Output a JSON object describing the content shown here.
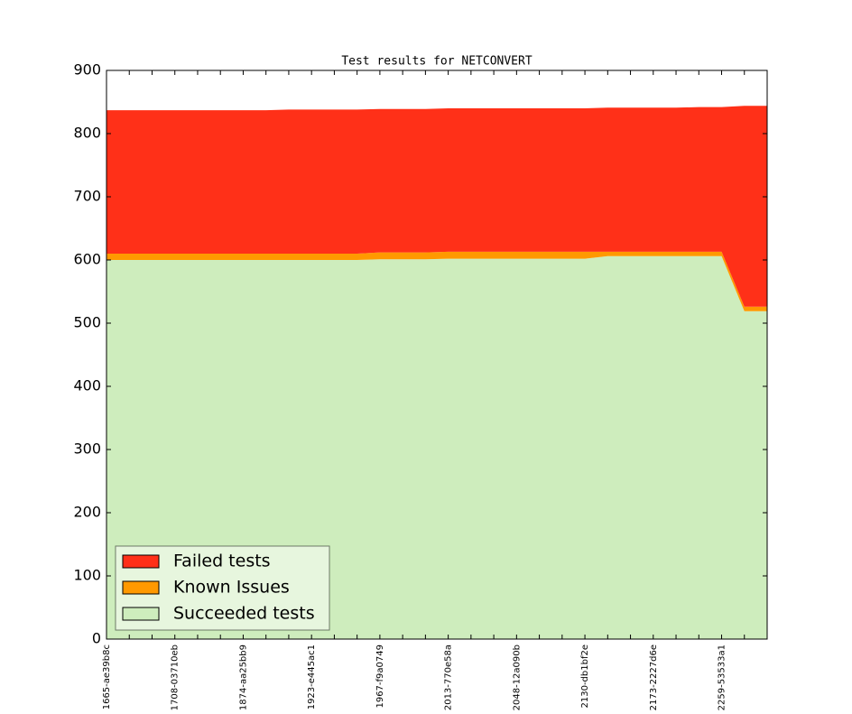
{
  "chart_data": {
    "type": "stacked-area",
    "title": "Test results for NETCONVERT",
    "categories": [
      "1665-ae39b8c",
      null,
      null,
      "1708-03710eb",
      null,
      null,
      "1874-aa25bb9",
      null,
      null,
      "1923-e445ac1",
      null,
      null,
      "1967-f9a0749",
      null,
      null,
      "2013-770e58a",
      null,
      null,
      "2048-12a090b",
      null,
      null,
      "2130-db1bf2e",
      null,
      null,
      "2173-2227d6e",
      null,
      null,
      "2259-53533a1",
      null,
      null
    ],
    "series": [
      {
        "name": "Succeeded tests",
        "color": "#ceedbd",
        "values": [
          600,
          600,
          600,
          600,
          600,
          600,
          600,
          600,
          600,
          600,
          600,
          600,
          601,
          601,
          601,
          602,
          602,
          602,
          602,
          602,
          602,
          602,
          606,
          606,
          606,
          606,
          606,
          606,
          519,
          519
        ]
      },
      {
        "name": "Known Issues",
        "color": "#ff9900",
        "values": [
          10,
          10,
          10,
          10,
          10,
          10,
          10,
          10,
          10,
          10,
          10,
          10,
          11,
          11,
          11,
          11,
          11,
          11,
          11,
          11,
          11,
          11,
          7,
          7,
          7,
          7,
          7,
          7,
          7,
          7
        ]
      },
      {
        "name": "Failed tests",
        "color": "#ff3018",
        "values": [
          227,
          227,
          227,
          227,
          227,
          227,
          227,
          227,
          228,
          228,
          228,
          228,
          227,
          227,
          227,
          227,
          227,
          227,
          227,
          227,
          227,
          227,
          228,
          228,
          228,
          228,
          229,
          229,
          318,
          318
        ]
      }
    ],
    "ylim": [
      0,
      900
    ],
    "yticks": [
      0,
      100,
      200,
      300,
      400,
      500,
      600,
      700,
      800,
      900
    ],
    "grid": false,
    "legend": "lower left"
  }
}
